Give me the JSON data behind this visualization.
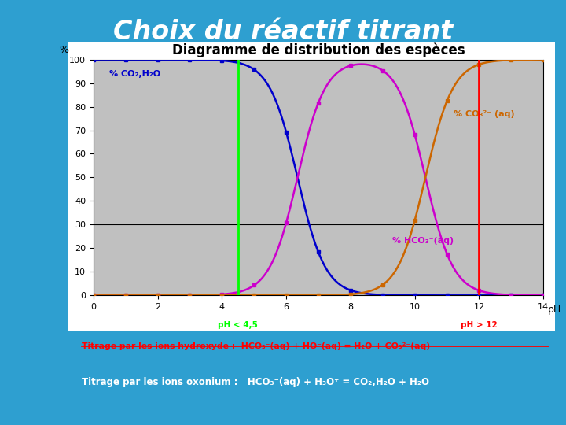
{
  "title_main": "Choix du réactif titrant",
  "chart_title": "Diagramme de distribution des espèces",
  "bg_color_outer": "#2e9fd0",
  "chart_bg": "#c0c0c0",
  "chart_panel_bg": "#ffffff",
  "xlabel": "pH",
  "ylabel": "%",
  "ylim": [
    0,
    100
  ],
  "xlim": [
    0,
    14
  ],
  "xticks": [
    0,
    2,
    4,
    6,
    8,
    10,
    12,
    14
  ],
  "yticks": [
    0,
    10,
    20,
    30,
    40,
    50,
    60,
    70,
    80,
    90,
    100
  ],
  "pKa1": 6.35,
  "pKa2": 10.33,
  "green_line_x": 4.5,
  "red_line_x": 12.0,
  "green_label": "pH < 4,5",
  "red_label": "pH > 12",
  "label_co2": "% CO₂,H₂O",
  "label_hco3": "% HCO₃⁻(aq)",
  "label_co32": "% CO₃²⁻ (aq)",
  "color_co2": "#0000cc",
  "color_hco3": "#cc00cc",
  "color_co32": "#cc6600",
  "line_width": 1.8,
  "marker": "s",
  "marker_size": 3.5,
  "title_fontsize": 24,
  "chart_title_fontsize": 12,
  "tick_fontsize": 8,
  "label_fontsize": 9
}
